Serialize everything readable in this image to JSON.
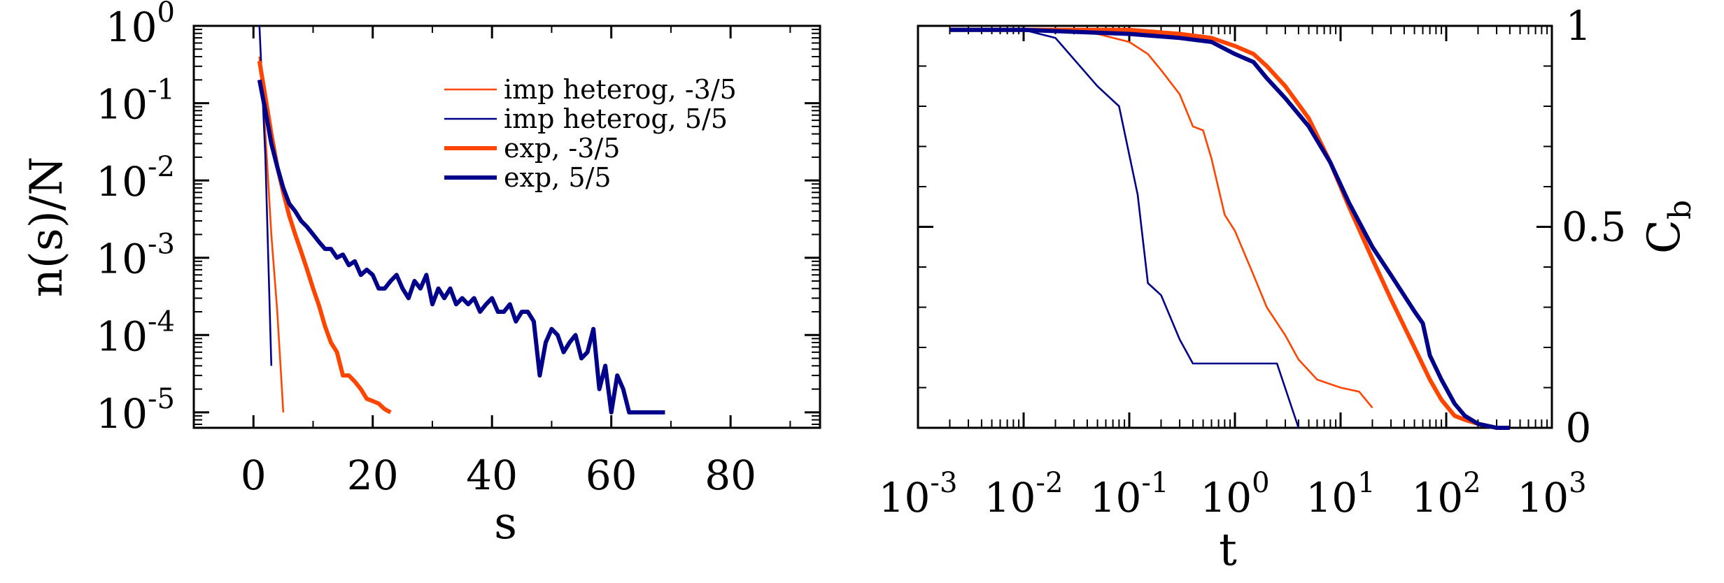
{
  "chart_data": [
    {
      "type": "line",
      "xlabel": "s",
      "ylabel": "n(s)/N",
      "xlim": [
        -10,
        95
      ],
      "ylim_log10": [
        -5.2,
        0
      ],
      "y_scale": "log",
      "grid": false,
      "legend_placement": "top-right",
      "x_ticks": [
        0,
        20,
        40,
        60,
        80
      ],
      "x_tick_labels": [
        "0",
        "20",
        "40",
        "60",
        "80"
      ],
      "y_ticks": [
        {
          "base": "10",
          "exp": "0",
          "value": 1
        },
        {
          "base": "10",
          "exp": "-1",
          "value": 0.1
        },
        {
          "base": "10",
          "exp": "-2",
          "value": 0.01
        },
        {
          "base": "10",
          "exp": "-3",
          "value": 0.001
        },
        {
          "base": "10",
          "exp": "-4",
          "value": 0.0001
        },
        {
          "base": "10",
          "exp": "-5",
          "value": 1e-05
        }
      ],
      "series": [
        {
          "name": "imp heterog, -3/5",
          "color": "#ff4500",
          "width": "thin",
          "x": [
            1,
            2,
            3,
            4,
            5
          ],
          "y": [
            0.4,
            0.04,
            0.002,
            0.0002,
            1e-05
          ]
        },
        {
          "name": "imp heterog, 5/5",
          "color": "#00008b",
          "width": "thin",
          "x": [
            1,
            2,
            3
          ],
          "y": [
            1.0,
            0.02,
            4e-05
          ]
        },
        {
          "name": "exp, -3/5",
          "color": "#ff4500",
          "width": "thick",
          "x": [
            1,
            2,
            3,
            4,
            5,
            6,
            7,
            8,
            9,
            10,
            11,
            12,
            13,
            14,
            15,
            16,
            17,
            18,
            19,
            20,
            21,
            22,
            23
          ],
          "y": [
            0.35,
            0.12,
            0.04,
            0.015,
            0.007,
            0.0035,
            0.002,
            0.0012,
            0.0007,
            0.0004,
            0.00024,
            0.00013,
            8e-05,
            6e-05,
            3e-05,
            3e-05,
            2.5e-05,
            2e-05,
            1.5e-05,
            1.4e-05,
            1.3e-05,
            1.1e-05,
            1e-05
          ]
        },
        {
          "name": "exp, 5/5",
          "color": "#00008b",
          "width": "thick",
          "x": [
            1,
            2,
            3,
            4,
            5,
            6,
            7,
            8,
            9,
            10,
            11,
            12,
            13,
            14,
            15,
            16,
            17,
            18,
            19,
            20,
            21,
            22,
            23,
            24,
            25,
            26,
            27,
            28,
            29,
            30,
            31,
            32,
            33,
            34,
            35,
            36,
            37,
            38,
            39,
            40,
            41,
            42,
            43,
            44,
            45,
            46,
            47,
            48,
            49,
            50,
            51,
            52,
            53,
            54,
            55,
            56,
            57,
            58,
            59,
            60,
            61,
            62,
            63,
            64,
            65,
            66,
            67,
            68,
            69
          ],
          "y": [
            0.2,
            0.08,
            0.03,
            0.015,
            0.008,
            0.005,
            0.004,
            0.003,
            0.0025,
            0.002,
            0.0016,
            0.0013,
            0.0013,
            0.001,
            0.0011,
            0.0008,
            0.0009,
            0.0006,
            0.0007,
            0.0006,
            0.0004,
            0.0004,
            0.0005,
            0.0006,
            0.0004,
            0.0003,
            0.0005,
            0.0004,
            0.0006,
            0.00025,
            0.0004,
            0.0003,
            0.0004,
            0.00025,
            0.0003,
            0.00025,
            0.0003,
            0.0002,
            0.00025,
            0.0003,
            0.0002,
            0.0002,
            0.00025,
            0.00015,
            0.0002,
            0.0002,
            0.00015,
            3e-05,
            8e-05,
            0.00012,
            0.0001,
            6e-05,
            8e-05,
            0.0001,
            5e-05,
            6e-05,
            0.00012,
            2e-05,
            4e-05,
            1e-05,
            3e-05,
            2e-05,
            1e-05,
            1e-05,
            1e-05,
            1e-05,
            1e-05,
            1e-05,
            1e-05
          ]
        }
      ]
    },
    {
      "type": "line",
      "xlabel": "t",
      "ylabel": "C",
      "ylabel_sub": "b",
      "x_scale": "log",
      "xlim_log10": [
        -3,
        3
      ],
      "ylim": [
        0,
        1
      ],
      "grid": false,
      "y_axis_side": "right",
      "x_ticks": [
        {
          "base": "10",
          "exp": "-3",
          "value": 0.001
        },
        {
          "base": "10",
          "exp": "-2",
          "value": 0.01
        },
        {
          "base": "10",
          "exp": "-1",
          "value": 0.1
        },
        {
          "base": "10",
          "exp": "0",
          "value": 1
        },
        {
          "base": "10",
          "exp": "1",
          "value": 10
        },
        {
          "base": "10",
          "exp": "2",
          "value": 100
        },
        {
          "base": "10",
          "exp": "3",
          "value": 1000
        }
      ],
      "y_ticks": [
        0,
        0.5,
        1
      ],
      "y_tick_labels": [
        "0",
        "0.5",
        "1"
      ],
      "series": [
        {
          "color": "#ff4500",
          "width": "thin",
          "x": [
            0.002,
            0.01,
            0.05,
            0.1,
            0.15,
            0.2,
            0.3,
            0.4,
            0.5,
            0.6,
            0.8,
            1.0,
            1.5,
            2.0,
            3.0,
            4.0,
            6.0,
            10.0,
            15.0,
            20.0
          ],
          "y": [
            0.99,
            0.99,
            0.98,
            0.96,
            0.93,
            0.89,
            0.83,
            0.75,
            0.74,
            0.67,
            0.53,
            0.49,
            0.38,
            0.3,
            0.23,
            0.17,
            0.12,
            0.1,
            0.09,
            0.05
          ]
        },
        {
          "color": "#00008b",
          "width": "thin",
          "x": [
            0.002,
            0.01,
            0.02,
            0.05,
            0.08,
            0.12,
            0.15,
            0.2,
            0.3,
            0.4,
            0.5,
            2.5,
            4.0
          ],
          "y": [
            0.99,
            0.99,
            0.97,
            0.85,
            0.8,
            0.58,
            0.36,
            0.33,
            0.22,
            0.16,
            0.16,
            0.16,
            0.0
          ]
        },
        {
          "color": "#ff4500",
          "width": "thick",
          "x": [
            0.002,
            0.01,
            0.1,
            0.3,
            0.6,
            1.0,
            1.5,
            2.0,
            3.0,
            5.0,
            8.0,
            12.0,
            20.0,
            30.0,
            50.0,
            70.0,
            90.0,
            120.0,
            150.0,
            200.0,
            300.0
          ],
          "y": [
            0.99,
            0.99,
            0.99,
            0.98,
            0.97,
            0.95,
            0.93,
            0.9,
            0.85,
            0.77,
            0.66,
            0.55,
            0.42,
            0.32,
            0.2,
            0.12,
            0.07,
            0.03,
            0.02,
            0.01,
            0.0
          ]
        },
        {
          "color": "#00008b",
          "width": "thick",
          "x": [
            0.002,
            0.01,
            0.1,
            0.3,
            0.6,
            1.0,
            1.5,
            2.0,
            3.0,
            5.0,
            8.0,
            12.0,
            20.0,
            30.0,
            50.0,
            60.0,
            70.0,
            90.0,
            120.0,
            150.0,
            200.0,
            300.0,
            400.0
          ],
          "y": [
            0.99,
            0.99,
            0.98,
            0.97,
            0.96,
            0.93,
            0.91,
            0.87,
            0.82,
            0.75,
            0.66,
            0.56,
            0.45,
            0.38,
            0.29,
            0.26,
            0.18,
            0.12,
            0.06,
            0.03,
            0.01,
            0.0,
            0.0
          ]
        }
      ]
    }
  ]
}
